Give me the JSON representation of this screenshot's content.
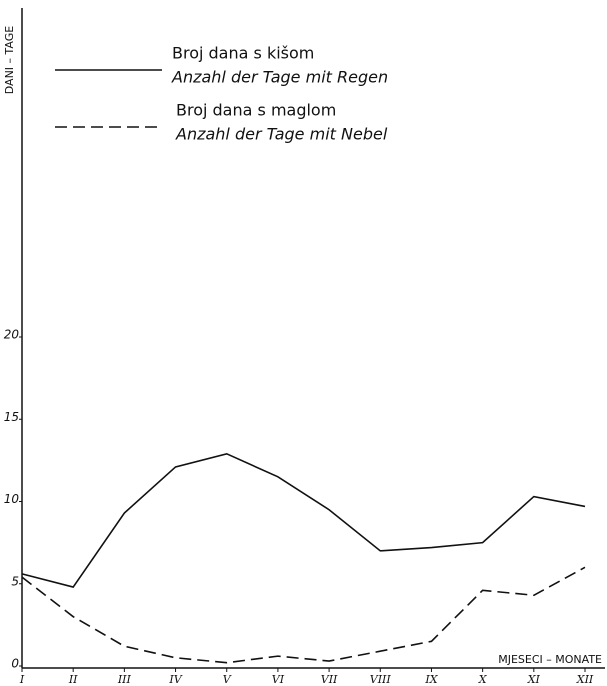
{
  "chart_data": {
    "type": "line",
    "y_label": "DANI – TAGE",
    "x_label": "MJESECI – MONATE",
    "categories": [
      "I",
      "II",
      "III",
      "IV",
      "V",
      "VI",
      "VII",
      "VIII",
      "IX",
      "X",
      "XI",
      "XII"
    ],
    "series": [
      {
        "name": "Broj dana s kišom",
        "name_alt": "Anzahl der Tage mit Regen",
        "color": "#111111",
        "style": "solid",
        "values": [
          5.6,
          4.8,
          9.3,
          12.1,
          12.9,
          11.5,
          9.5,
          7.0,
          7.2,
          7.5,
          10.3,
          9.7
        ]
      },
      {
        "name": "Broj dana s maglom",
        "name_alt": "Anzahl der Tage mit Nebel",
        "color": "#111111",
        "style": "dashed",
        "values": [
          5.4,
          3.0,
          1.2,
          0.5,
          0.2,
          0.6,
          0.3,
          0.9,
          1.5,
          4.6,
          4.3,
          6.0
        ]
      }
    ],
    "ylim": [
      0,
      40
    ],
    "yticks": [
      0,
      5,
      10,
      15,
      20
    ],
    "grid": false
  }
}
